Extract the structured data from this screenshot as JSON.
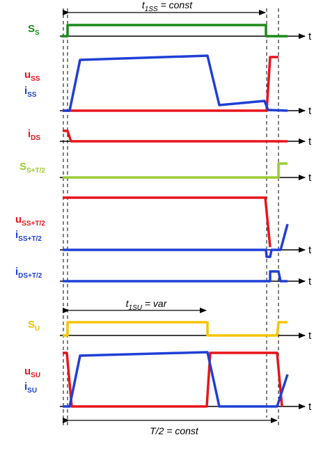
{
  "rows": [
    {
      "labels": [
        {
          "main": "S",
          "sub": "S"
        }
      ],
      "axis_label": "t"
    },
    {
      "labels": [
        {
          "main": "u",
          "sub": "SS"
        },
        {
          "main": "i",
          "sub": "SS"
        }
      ],
      "axis_label": "t"
    },
    {
      "labels": [
        {
          "main": "i",
          "sub": "DS"
        }
      ],
      "axis_label": "t"
    },
    {
      "labels": [
        {
          "main": "S",
          "sub": "S+T/2"
        }
      ],
      "axis_label": "t"
    },
    {
      "labels": [
        {
          "main": "u",
          "sub": "SS+T/2"
        },
        {
          "main": "i",
          "sub": "SS+T/2"
        }
      ],
      "axis_label": "t"
    },
    {
      "labels": [
        {
          "main": "i",
          "sub": "DS+T/2"
        }
      ],
      "axis_label": "t"
    },
    {
      "labels": [
        {
          "main": "S",
          "sub": "U"
        }
      ],
      "axis_label": "t"
    },
    {
      "labels": [
        {
          "main": "u",
          "sub": "SU"
        },
        {
          "main": "i",
          "sub": "SU"
        }
      ],
      "axis_label": "t"
    }
  ],
  "annotations": [
    {
      "main": "t",
      "sub": "1SS",
      "rest": " = const"
    },
    {
      "main": "t",
      "sub": "1SU",
      "rest": " = var"
    },
    {
      "main": "T/2 = const"
    }
  ]
}
